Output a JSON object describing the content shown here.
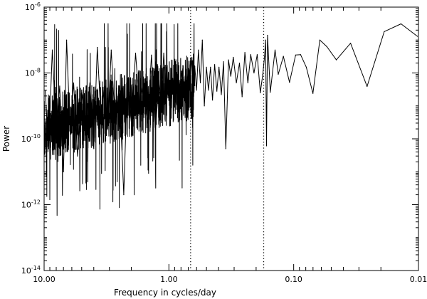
{
  "chart_data": {
    "type": "line",
    "title": "",
    "xlabel": "Frequency in cycles/day",
    "ylabel": "Power",
    "x_scale": "log",
    "x_reversed": true,
    "y_scale": "log",
    "xlim": [
      10.0,
      0.01
    ],
    "ylim": [
      1e-14,
      1e-06
    ],
    "x_ticks": [
      {
        "value": 10.0,
        "label": "10.00"
      },
      {
        "value": 1.0,
        "label": "1.00"
      },
      {
        "value": 0.1,
        "label": "0.10"
      },
      {
        "value": 0.01,
        "label": "0.01"
      }
    ],
    "y_ticks": [
      {
        "value": 1e-14,
        "base": "10",
        "exp": "-14"
      },
      {
        "value": 1e-12,
        "base": "10",
        "exp": "-12"
      },
      {
        "value": 1e-10,
        "base": "10",
        "exp": "-10"
      },
      {
        "value": 1e-08,
        "base": "10",
        "exp": "-8"
      },
      {
        "value": 1e-06,
        "base": "10",
        "exp": "-6"
      }
    ],
    "grid": false,
    "legend": "none",
    "series": [
      {
        "x": [
          0.0102,
          0.0138,
          0.0188,
          0.0258,
          0.035,
          0.0455,
          0.0542,
          0.0617,
          0.0701,
          0.0792,
          0.088,
          0.0965,
          0.108,
          0.121,
          0.133,
          0.141,
          0.154,
          0.162,
          0.165,
          0.168,
          0.171,
          0.177,
          0.185,
          0.196,
          0.208,
          0.221,
          0.233,
          0.246,
          0.259,
          0.272,
          0.288,
          0.305,
          0.319,
          0.333,
          0.35,
          0.365,
          0.38,
          0.397,
          0.413,
          0.43,
          0.447,
          0.464,
          0.482,
          0.5,
          0.52,
          0.54,
          0.56,
          0.58,
          0.6,
          0.62,
          0.64,
          0.66,
          0.68,
          0.7,
          0.73,
          0.76,
          0.79,
          0.82,
          0.85,
          0.88,
          0.91,
          0.95,
          1.0,
          1.05,
          1.1,
          1.15,
          1.2,
          1.28,
          1.38,
          1.48,
          1.6,
          1.72,
          1.85,
          2.0,
          2.15,
          2.3,
          2.5,
          2.7,
          2.9,
          3.1,
          3.3,
          3.5,
          3.75,
          4.0,
          4.3,
          4.6,
          5.0,
          5.4,
          5.8,
          6.2,
          6.6,
          7.0,
          7.5,
          8.0,
          8.6,
          9.2,
          9.8
        ],
        "y": [
          1.3e-07,
          3.1e-07,
          1.8e-07,
          3.9e-09,
          8e-08,
          2.5e-08,
          6.3e-08,
          1e-07,
          2.4e-09,
          1.5e-08,
          3.6e-08,
          3.5e-08,
          5.2e-09,
          3.2e-08,
          9.1e-09,
          5e-08,
          2.6e-09,
          1.4e-07,
          6.1e-11,
          1e-07,
          3.2e-08,
          9e-09,
          2.5e-09,
          3.6e-08,
          1e-08,
          3.6e-08,
          5e-09,
          4.2e-08,
          1.9e-09,
          2e-08,
          5e-09,
          3e-08,
          8e-09,
          2.5e-08,
          5e-11,
          2.2e-08,
          2.2e-09,
          1.5e-08,
          2.8e-09,
          1.8e-08,
          1.5e-09,
          1.5e-08,
          3e-09,
          1.5e-08,
          1e-09,
          1e-07,
          5e-09,
          5e-08,
          3e-09,
          1.6e-08,
          2.2e-09,
          3e-08,
          5e-09,
          1.3e-08,
          2e-09,
          2.5e-09,
          1.1e-08,
          3.5e-09,
          9e-09,
          2e-09,
          6e-09,
          2.5e-09,
          5e-09,
          1.5e-09,
          4e-08,
          1e-09,
          6e-09,
          2e-10,
          3.5e-08,
          3e-10,
          5e-09,
          1e-09,
          4e-08,
          3e-10,
          6e-09,
          2e-12,
          4e-09,
          3e-10,
          5e-08,
          2e-10,
          3e-09,
          4e-10,
          6e-08,
          5e-11,
          5e-09,
          2e-10,
          3e-09,
          3e-11,
          5e-09,
          2e-10,
          1e-07,
          1e-11,
          4e-09,
          2e-10,
          5e-08,
          5e-11,
          3e-09
        ]
      }
    ],
    "marker_lines": [
      {
        "x": 0.67,
        "style": "dotted"
      },
      {
        "x": 0.174,
        "style": "dotted"
      }
    ]
  }
}
